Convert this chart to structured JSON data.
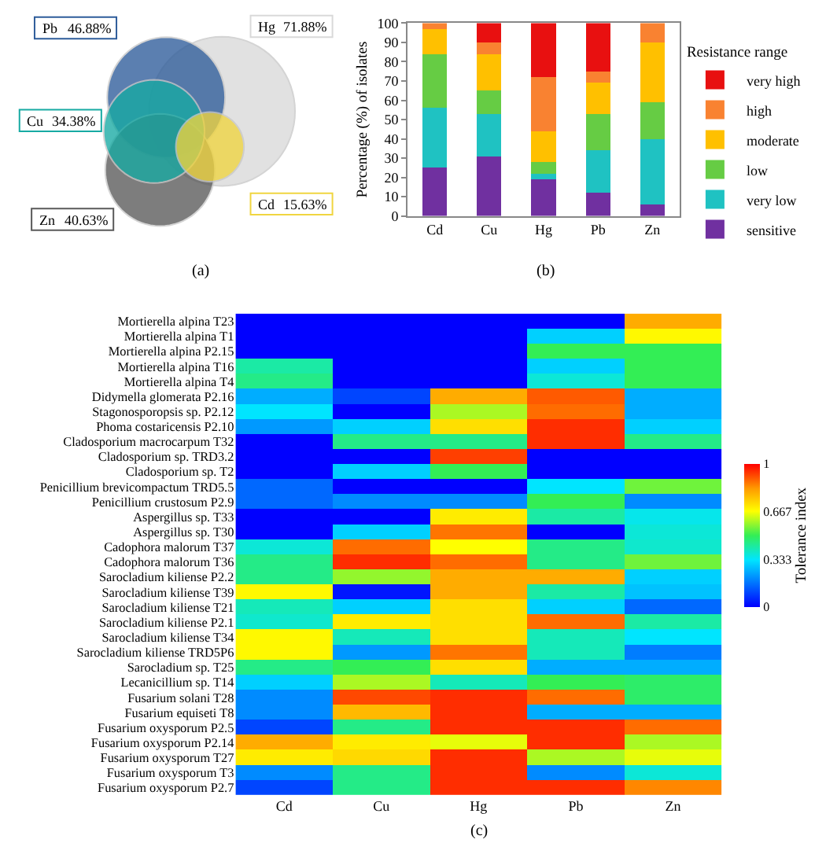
{
  "chart_data": [
    {
      "type": "other",
      "categories": [
        "Pb",
        "Hg",
        "Cu",
        "Cd",
        "Zn"
      ],
      "values": [
        46.88,
        71.88,
        34.38,
        15.63,
        40.63
      ],
      "value_labels": [
        "46.88%",
        "71.88%",
        "34.38%",
        "15.63%",
        "40.63%"
      ],
      "colors": [
        "#2e5c9a",
        "#d9d9d9",
        "#17aaa3",
        "#f0d540",
        "#595959"
      ],
      "annotations": [
        "(a)"
      ]
    },
    {
      "type": "bar",
      "stacked": true,
      "categories": [
        "Cd",
        "Cu",
        "Hg",
        "Pb",
        "Zn"
      ],
      "ylabel": "Percentage (%) of isolates",
      "legend_title": "Resistance range",
      "legend": "right",
      "ylim": [
        0,
        100
      ],
      "yticks": [
        0,
        10,
        20,
        30,
        40,
        50,
        60,
        70,
        80,
        90,
        100
      ],
      "annotations": [
        "(b)"
      ],
      "series": [
        {
          "name": "sensitive",
          "color": "#7030a0",
          "values": [
            25,
            31,
            19,
            12,
            6
          ]
        },
        {
          "name": "very low",
          "color": "#1fc2c2",
          "values": [
            31,
            22,
            3,
            22,
            34
          ]
        },
        {
          "name": "low",
          "color": "#66cc44",
          "values": [
            28,
            12,
            6,
            19,
            19
          ]
        },
        {
          "name": "moderate",
          "color": "#ffc000",
          "values": [
            13,
            19,
            16,
            16,
            31
          ]
        },
        {
          "name": "high",
          "color": "#f98231",
          "values": [
            3,
            6,
            28,
            6,
            10
          ]
        },
        {
          "name": "very high",
          "color": "#e81010",
          "values": [
            0,
            10,
            28,
            25,
            0
          ]
        }
      ]
    },
    {
      "type": "heatmap",
      "categories": [
        "Cd",
        "Cu",
        "Hg",
        "Pb",
        "Zn"
      ],
      "clabel": "Tolerance index",
      "clim": [
        0,
        1
      ],
      "cticks": [
        0,
        0.333,
        0.667,
        1
      ],
      "annotations": [
        "(c)"
      ],
      "y_categories": [
        "Mortierella alpina T23",
        "Mortierella alpina T1",
        "Mortierella alpina P2.15",
        "Mortierella alpina T16",
        "Mortierella alpina T4",
        "Didymella glomerata P2.16",
        "Stagonosporopsis sp. P2.12",
        "Phoma costaricensis P2.10",
        "Cladosporium macrocarpum T32",
        "Cladosporium sp. TRD3.2",
        "Cladosporium sp. T2",
        "Penicillium brevicompactum TRD5.5",
        "Penicillium crustosum P2.9",
        "Aspergillus sp. T33",
        "Aspergillus sp. T30",
        "Cadophora malorum T37",
        "Cadophora malorum T36",
        "Sarocladium kiliense P2.2",
        "Sarocladium kiliense T39",
        "Sarocladium kiliense T21",
        "Sarocladium kiliense P2.1",
        "Sarocladium kiliense T34",
        "Sarocladium kiliense TRD5P6",
        "Sarocladium sp. T25",
        "Lecanicillium sp. T14",
        "Fusarium solani T28",
        "Fusarium equiseti T8",
        "Fusarium oxysporum P2.5",
        "Fusarium oxysporum P2.14",
        "Fusarium oxysporum T27",
        "Fusarium oxysporum T3",
        "Fusarium oxysporum P2.7"
      ],
      "cells": [
        [
          0,
          0,
          0,
          0,
          0.8
        ],
        [
          0,
          0,
          0,
          0.3,
          0.68
        ],
        [
          0,
          0,
          0,
          0.5,
          0.5
        ],
        [
          0.42,
          0,
          0,
          0.3,
          0.5
        ],
        [
          0.45,
          0,
          0,
          0.37,
          0.5
        ],
        [
          0.25,
          0.1,
          0.8,
          0.9,
          0.25
        ],
        [
          0.33,
          0,
          0.6,
          0.88,
          0.25
        ],
        [
          0.22,
          0.3,
          0.72,
          0.95,
          0.3
        ],
        [
          0,
          0.45,
          0.45,
          0.95,
          0.45
        ],
        [
          0,
          0,
          0.93,
          0,
          0
        ],
        [
          0,
          0.3,
          0.5,
          0,
          0
        ],
        [
          0.15,
          0,
          0,
          0.33,
          0.55
        ],
        [
          0.15,
          0.2,
          0.2,
          0.5,
          0.2
        ],
        [
          0,
          0,
          0.7,
          0.42,
          0.35
        ],
        [
          0,
          0.3,
          0.87,
          0,
          0.37
        ],
        [
          0.37,
          0.88,
          0.67,
          0.45,
          0.38
        ],
        [
          0.45,
          0.95,
          0.88,
          0.45,
          0.55
        ],
        [
          0.45,
          0.58,
          0.8,
          0.8,
          0.3
        ],
        [
          0.68,
          0.03,
          0.8,
          0.42,
          0.28
        ],
        [
          0.4,
          0.3,
          0.72,
          0.3,
          0.15
        ],
        [
          0.38,
          0.7,
          0.72,
          0.88,
          0.42
        ],
        [
          0.68,
          0.4,
          0.72,
          0.4,
          0.33
        ],
        [
          0.68,
          0.22,
          0.87,
          0.4,
          0.18
        ],
        [
          0.45,
          0.5,
          0.72,
          0.25,
          0.25
        ],
        [
          0.3,
          0.6,
          0.4,
          0.5,
          0.48
        ],
        [
          0.2,
          0.92,
          0.95,
          0.88,
          0.48
        ],
        [
          0.2,
          0.78,
          0.95,
          0.25,
          0.25
        ],
        [
          0.1,
          0.45,
          0.95,
          0.95,
          0.88
        ],
        [
          0.8,
          0.7,
          0.65,
          0.95,
          0.6
        ],
        [
          0.7,
          0.73,
          0.95,
          0.6,
          0.65
        ],
        [
          0.2,
          0.45,
          0.95,
          0.2,
          0.37
        ],
        [
          0.1,
          0.45,
          0.95,
          0.95,
          0.85
        ]
      ]
    }
  ]
}
